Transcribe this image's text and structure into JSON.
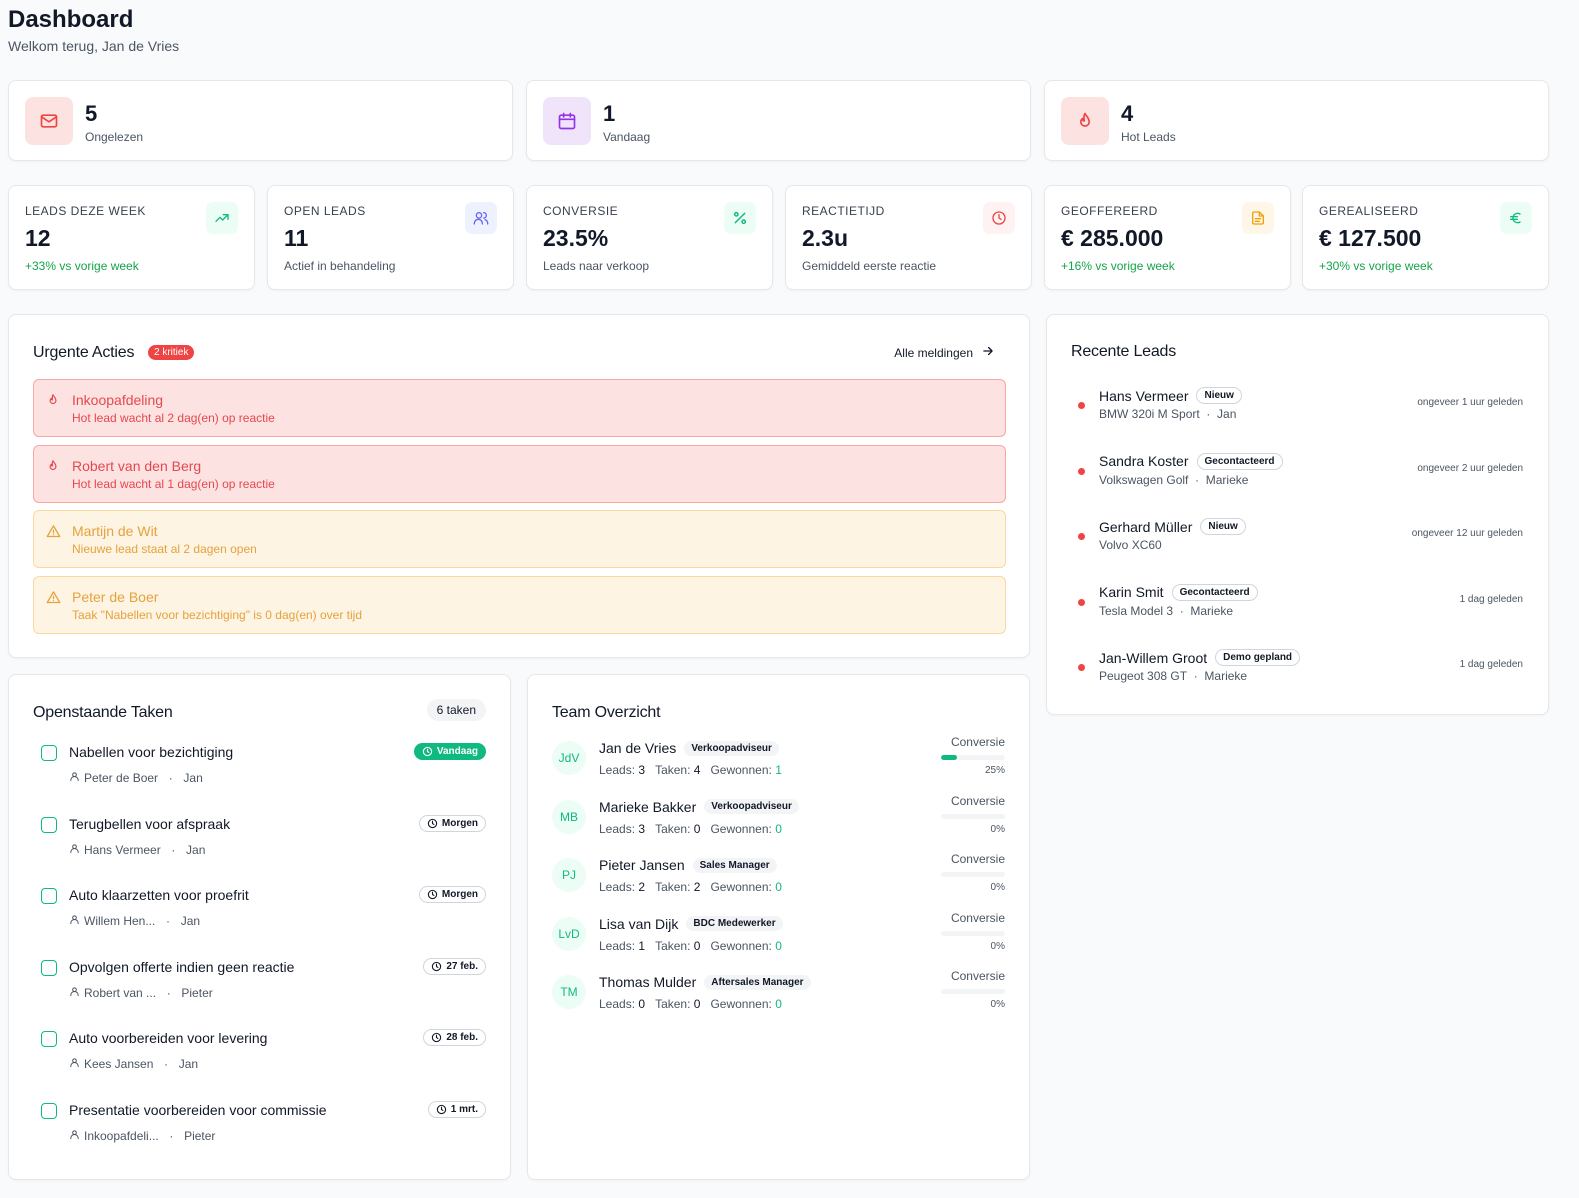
{
  "header": {
    "title": "Dashboard",
    "subtitle": "Welkom terug, Jan de Vries"
  },
  "stats": [
    {
      "value": "5",
      "label": "Ongelezen",
      "icon": "mail-icon",
      "color": "#ef4444",
      "bg": "#fde2e2"
    },
    {
      "value": "1",
      "label": "Vandaag",
      "icon": "calendar-icon",
      "color": "#9333ea",
      "bg": "#f0e4fb"
    },
    {
      "value": "4",
      "label": "Hot Leads",
      "icon": "flame-icon",
      "color": "#ef4444",
      "bg": "#fde2e2"
    }
  ],
  "kpis": [
    {
      "title": "LEADS DEZE WEEK",
      "value": "12",
      "sub": "+33% vs vorige week",
      "green": true,
      "icon": "trending-up-icon",
      "color": "#10b981",
      "bg": "#ecfdf5"
    },
    {
      "title": "OPEN LEADS",
      "value": "11",
      "sub": "Actief in behandeling",
      "green": false,
      "icon": "users-icon",
      "color": "#6366f1",
      "bg": "#eef2ff"
    },
    {
      "title": "CONVERSIE",
      "value": "23.5%",
      "sub": "Leads naar verkoop",
      "green": false,
      "icon": "percent-icon",
      "color": "#10b981",
      "bg": "#ecfdf5"
    },
    {
      "title": "REACTIETIJD",
      "value": "2.3u",
      "sub": "Gemiddeld eerste reactie",
      "green": false,
      "icon": "clock-icon",
      "color": "#ef4444",
      "bg": "#fef2f2"
    },
    {
      "title": "GEOFFEREERD",
      "value": "€ 285.000",
      "sub": "+16% vs vorige week",
      "green": true,
      "icon": "document-icon",
      "color": "#f59e0b",
      "bg": "#fef6e7"
    },
    {
      "title": "GEREALISEERD",
      "value": "€ 127.500",
      "sub": "+30% vs vorige week",
      "green": true,
      "icon": "euro-icon",
      "color": "#10b981",
      "bg": "#ecfdf5"
    }
  ],
  "urgent": {
    "title": "Urgente Acties",
    "badge": "2 kritiek",
    "link": "Alle meldingen",
    "items": [
      {
        "level": "red",
        "title": "Inkoopafdeling",
        "sub": "Hot lead wacht al 2 dag(en) op reactie"
      },
      {
        "level": "red",
        "title": "Robert van den Berg",
        "sub": "Hot lead wacht al 1 dag(en) op reactie"
      },
      {
        "level": "amber",
        "title": "Martijn de Wit",
        "sub": "Nieuwe lead staat al 2 dagen open"
      },
      {
        "level": "amber",
        "title": "Peter de Boer",
        "sub": "Taak \"Nabellen voor bezichtiging\" is 0 dag(en) over tijd"
      }
    ]
  },
  "leads": {
    "title": "Recente Leads",
    "items": [
      {
        "name": "Hans Vermeer",
        "status": "Nieuw",
        "car": "BMW 320i M Sport",
        "owner": "Jan",
        "time": "ongeveer 1 uur geleden"
      },
      {
        "name": "Sandra Koster",
        "status": "Gecontacteerd",
        "car": "Volkswagen Golf",
        "owner": "Marieke",
        "time": "ongeveer 2 uur geleden"
      },
      {
        "name": "Gerhard Müller",
        "status": "Nieuw",
        "car": "Volvo XC60",
        "owner": "",
        "time": "ongeveer 12 uur geleden"
      },
      {
        "name": "Karin Smit",
        "status": "Gecontacteerd",
        "car": "Tesla Model 3",
        "owner": "Marieke",
        "time": "1 dag geleden"
      },
      {
        "name": "Jan-Willem Groot",
        "status": "Demo gepland",
        "car": "Peugeot 308 GT",
        "owner": "Marieke",
        "time": "1 dag geleden"
      }
    ]
  },
  "tasks": {
    "title": "Openstaande Taken",
    "count": "6 taken",
    "items": [
      {
        "title": "Nabellen voor bezichtiging",
        "contact": "Peter de Boer",
        "owner": "Jan",
        "due": "Vandaag",
        "today": true
      },
      {
        "title": "Terugbellen voor afspraak",
        "contact": "Hans Vermeer",
        "owner": "Jan",
        "due": "Morgen",
        "today": false
      },
      {
        "title": "Auto klaarzetten voor proefrit",
        "contact": "Willem Hen...",
        "owner": "Jan",
        "due": "Morgen",
        "today": false
      },
      {
        "title": "Opvolgen offerte indien geen reactie",
        "contact": "Robert van ...",
        "owner": "Pieter",
        "due": "27 feb.",
        "today": false
      },
      {
        "title": "Auto voorbereiden voor levering",
        "contact": "Kees Jansen",
        "owner": "Jan",
        "due": "28 feb.",
        "today": false
      },
      {
        "title": "Presentatie voorbereiden voor commissie",
        "contact": "Inkoopafdeli...",
        "owner": "Pieter",
        "due": "1 mrt.",
        "today": false
      }
    ]
  },
  "team": {
    "title": "Team Overzicht",
    "conv_label": "Conversie",
    "leads_label": "Leads:",
    "tasks_label": "Taken:",
    "won_label": "Gewonnen:",
    "members": [
      {
        "initials": "JdV",
        "name": "Jan de Vries",
        "role": "Verkoopadviseur",
        "leads": "3",
        "tasks": "4",
        "won": "1",
        "conversion": 25,
        "pct": "25%"
      },
      {
        "initials": "MB",
        "name": "Marieke Bakker",
        "role": "Verkoopadviseur",
        "leads": "3",
        "tasks": "0",
        "won": "0",
        "conversion": 0,
        "pct": "0%"
      },
      {
        "initials": "PJ",
        "name": "Pieter Jansen",
        "role": "Sales Manager",
        "leads": "2",
        "tasks": "2",
        "won": "0",
        "conversion": 0,
        "pct": "0%"
      },
      {
        "initials": "LvD",
        "name": "Lisa van Dijk",
        "role": "BDC Medewerker",
        "leads": "1",
        "tasks": "0",
        "won": "0",
        "conversion": 0,
        "pct": "0%"
      },
      {
        "initials": "TM",
        "name": "Thomas Mulder",
        "role": "Aftersales Manager",
        "leads": "0",
        "tasks": "0",
        "won": "0",
        "conversion": 0,
        "pct": "0%"
      }
    ]
  }
}
